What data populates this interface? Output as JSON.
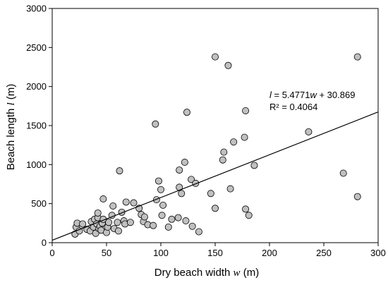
{
  "chart_data": {
    "type": "scatter",
    "xlabel_prefix": "Dry beach width ",
    "xlabel_var": "w",
    "xlabel_suffix": " (m)",
    "ylabel_prefix": "Beach length ",
    "ylabel_var": "l",
    "ylabel_suffix": " (m)",
    "xlim": [
      0,
      300
    ],
    "ylim": [
      0,
      3000
    ],
    "x_ticks": [
      0,
      50,
      100,
      150,
      200,
      250,
      300
    ],
    "y_ticks": [
      0,
      500,
      1000,
      1500,
      2000,
      2500,
      3000
    ],
    "grid": false,
    "marker_color": "#c0c0c0",
    "line_color": "#000000",
    "fit": {
      "slope": 5.4771,
      "intercept": 30.869
    },
    "equation": {
      "lhs": "l",
      "eq_mid": " = 5.4771",
      "var": "w",
      "eq_tail": " + 30.869",
      "r2": "R² = 0.4064"
    },
    "points": [
      {
        "x": 21,
        "y": 110
      },
      {
        "x": 22,
        "y": 200
      },
      {
        "x": 23,
        "y": 250
      },
      {
        "x": 25,
        "y": 150
      },
      {
        "x": 28,
        "y": 240
      },
      {
        "x": 32,
        "y": 170
      },
      {
        "x": 35,
        "y": 150
      },
      {
        "x": 36,
        "y": 270
      },
      {
        "x": 38,
        "y": 200
      },
      {
        "x": 39,
        "y": 300
      },
      {
        "x": 40,
        "y": 120
      },
      {
        "x": 41,
        "y": 240
      },
      {
        "x": 42,
        "y": 320
      },
      {
        "x": 42,
        "y": 380
      },
      {
        "x": 43,
        "y": 180
      },
      {
        "x": 44,
        "y": 210
      },
      {
        "x": 45,
        "y": 160
      },
      {
        "x": 46,
        "y": 250
      },
      {
        "x": 47,
        "y": 300
      },
      {
        "x": 47,
        "y": 560
      },
      {
        "x": 50,
        "y": 130
      },
      {
        "x": 51,
        "y": 200
      },
      {
        "x": 52,
        "y": 260
      },
      {
        "x": 55,
        "y": 350
      },
      {
        "x": 56,
        "y": 470
      },
      {
        "x": 57,
        "y": 180
      },
      {
        "x": 60,
        "y": 260
      },
      {
        "x": 61,
        "y": 150
      },
      {
        "x": 62,
        "y": 920
      },
      {
        "x": 64,
        "y": 390
      },
      {
        "x": 66,
        "y": 280
      },
      {
        "x": 67,
        "y": 240
      },
      {
        "x": 68,
        "y": 520
      },
      {
        "x": 72,
        "y": 260
      },
      {
        "x": 75,
        "y": 510
      },
      {
        "x": 80,
        "y": 440
      },
      {
        "x": 82,
        "y": 360
      },
      {
        "x": 84,
        "y": 270
      },
      {
        "x": 85,
        "y": 330
      },
      {
        "x": 88,
        "y": 230
      },
      {
        "x": 93,
        "y": 220
      },
      {
        "x": 95,
        "y": 1520
      },
      {
        "x": 96,
        "y": 550
      },
      {
        "x": 98,
        "y": 790
      },
      {
        "x": 100,
        "y": 680
      },
      {
        "x": 101,
        "y": 350
      },
      {
        "x": 102,
        "y": 480
      },
      {
        "x": 107,
        "y": 200
      },
      {
        "x": 110,
        "y": 300
      },
      {
        "x": 116,
        "y": 320
      },
      {
        "x": 117,
        "y": 930
      },
      {
        "x": 117,
        "y": 710
      },
      {
        "x": 119,
        "y": 630
      },
      {
        "x": 122,
        "y": 1030
      },
      {
        "x": 123,
        "y": 280
      },
      {
        "x": 124,
        "y": 1670
      },
      {
        "x": 128,
        "y": 810
      },
      {
        "x": 129,
        "y": 210
      },
      {
        "x": 132,
        "y": 760
      },
      {
        "x": 135,
        "y": 140
      },
      {
        "x": 146,
        "y": 630
      },
      {
        "x": 150,
        "y": 440
      },
      {
        "x": 150,
        "y": 2380
      },
      {
        "x": 157,
        "y": 1060
      },
      {
        "x": 158,
        "y": 1160
      },
      {
        "x": 162,
        "y": 2270
      },
      {
        "x": 164,
        "y": 690
      },
      {
        "x": 167,
        "y": 1290
      },
      {
        "x": 177,
        "y": 1350
      },
      {
        "x": 178,
        "y": 1690
      },
      {
        "x": 178,
        "y": 430
      },
      {
        "x": 181,
        "y": 350
      },
      {
        "x": 186,
        "y": 990
      },
      {
        "x": 236,
        "y": 1420
      },
      {
        "x": 268,
        "y": 890
      },
      {
        "x": 281,
        "y": 2380
      },
      {
        "x": 281,
        "y": 590
      }
    ]
  }
}
